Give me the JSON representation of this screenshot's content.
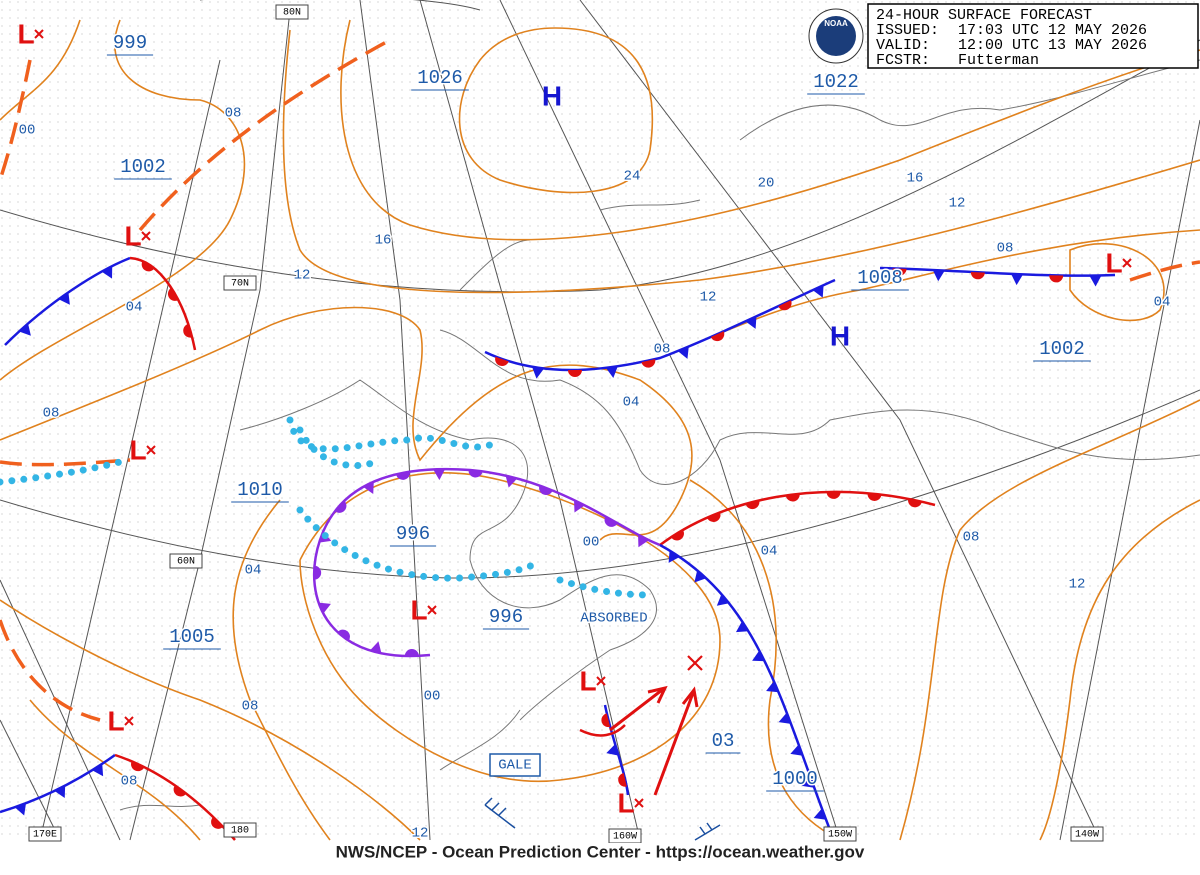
{
  "header": {
    "title": "24-HOUR SURFACE FORECAST",
    "issued_label": "ISSUED:",
    "issued": "17:03 UTC 12 MAY 2026",
    "valid_label": "VALID:",
    "valid": "12:00 UTC 13 MAY 2026",
    "forecaster_label": "FCSTR:",
    "forecaster": "Futterman",
    "logo": "NOAA"
  },
  "footer": "NWS/NCEP - Ocean Prediction Center - https://ocean.weather.gov",
  "grid_labels": [
    "80N",
    "70N",
    "60N",
    "170E",
    "180",
    "160W",
    "150W",
    "140W"
  ],
  "pressure_labels": [
    "999",
    "1002",
    "1026",
    "1022",
    "1008",
    "1002",
    "1010",
    "996",
    "996",
    "1005",
    "03",
    "1000"
  ],
  "highs": [
    "H",
    "H"
  ],
  "lows": [
    "L",
    "L",
    "L",
    "L",
    "L",
    "L",
    "L",
    "L"
  ],
  "isobar_labels": [
    "00",
    "08",
    "24",
    "20",
    "16",
    "12",
    "16",
    "12",
    "04",
    "12",
    "08",
    "08",
    "04",
    "08",
    "04",
    "00",
    "04",
    "08",
    "12",
    "04",
    "08",
    "00",
    "08",
    "12"
  ],
  "annotations": {
    "absorbed": "ABSORBED",
    "gale": "GALE"
  }
}
